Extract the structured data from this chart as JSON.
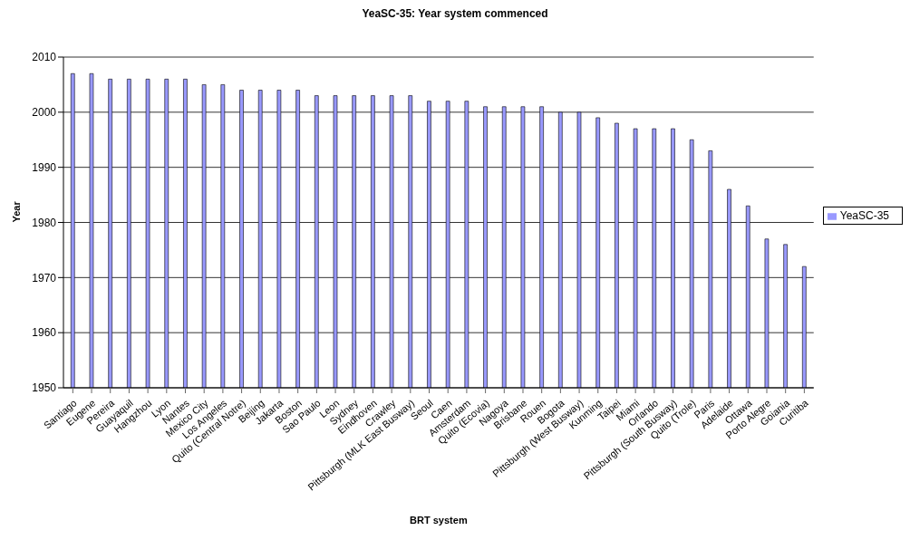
{
  "chart_data": {
    "type": "bar",
    "title": "YeaSC-35: Year system commenced",
    "xlabel": "BRT system",
    "ylabel": "Year",
    "categories": [
      "Santiago",
      "Eugene",
      "Pereira",
      "Guayaquil",
      "Hangzhou",
      "Lyon",
      "Nantes",
      "Mexico City",
      "Los Angeles",
      "Quito (Central Notre)",
      "Beijing",
      "Jakarta",
      "Boston",
      "Sao Paulo",
      "Leon",
      "Sydney",
      "Eindhoven",
      "Crawley",
      "Pittsburgh (MLK East Busway)",
      "Seoul",
      "Caen",
      "Amsterdam",
      "Quito (Ecovia)",
      "Nagoya",
      "Brisbane",
      "Rouen",
      "Bogota",
      "Pittsburgh (West Busway)",
      "Kunming",
      "Taipei",
      "Miami",
      "Orlando",
      "Pittsburgh (South Busway)",
      "Quito (Trole)",
      "Paris",
      "Adelaide",
      "Ottawa",
      "Porto Alegre",
      "Goiania",
      "Curitiba"
    ],
    "series": [
      {
        "name": "YeaSC-35",
        "color": "#9999ff",
        "values": [
          2007,
          2007,
          2006,
          2006,
          2006,
          2006,
          2006,
          2005,
          2005,
          2004,
          2004,
          2004,
          2004,
          2003,
          2003,
          2003,
          2003,
          2003,
          2003,
          2002,
          2002,
          2002,
          2001,
          2001,
          2001,
          2001,
          2000,
          2000,
          1999,
          1998,
          1997,
          1997,
          1997,
          1995,
          1993,
          1986,
          1983,
          1977,
          1976,
          1972
        ]
      }
    ],
    "ylim": [
      1950,
      2010
    ],
    "yticks": [
      1950,
      1960,
      1970,
      1980,
      1990,
      2000,
      2010
    ],
    "grid": "y",
    "legend": "right"
  }
}
